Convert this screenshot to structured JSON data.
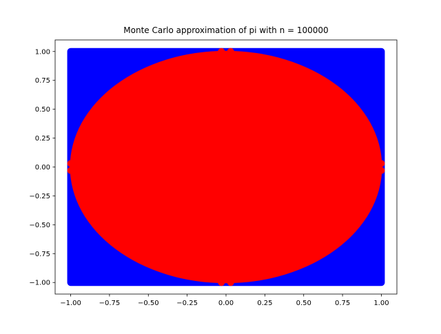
{
  "chart_data": {
    "type": "scatter",
    "title": "Monte Carlo approximation of pi with n = 100000",
    "xlabel": "",
    "ylabel": "",
    "xlim": [
      -1.1,
      1.1
    ],
    "ylim": [
      -1.1,
      1.1
    ],
    "grid": false,
    "x_ticks": [
      -1.0,
      -0.75,
      -0.5,
      -0.25,
      0.0,
      0.25,
      0.5,
      0.75,
      1.0
    ],
    "y_ticks": [
      -1.0,
      -0.75,
      -0.5,
      -0.25,
      0.0,
      0.25,
      0.5,
      0.75,
      1.0
    ],
    "x_tick_labels": [
      "−1.00",
      "−0.75",
      "−0.50",
      "−0.25",
      "0.00",
      "0.25",
      "0.50",
      "0.75",
      "1.00"
    ],
    "y_tick_labels": [
      "−1.00",
      "−0.75",
      "−0.50",
      "−0.25",
      "0.00",
      "0.25",
      "0.50",
      "0.75",
      "1.00"
    ],
    "n": 100000,
    "series": [
      {
        "color": "#0000ff",
        "region": "outside unit circle (x² + y² > 1)",
        "x_range": [
          -1,
          1
        ],
        "y_range": [
          -1,
          1
        ]
      },
      {
        "color": "#ff0000",
        "region": "inside unit circle (x² + y² ≤ 1)",
        "center": [
          0,
          0
        ],
        "radius": 1
      }
    ]
  }
}
